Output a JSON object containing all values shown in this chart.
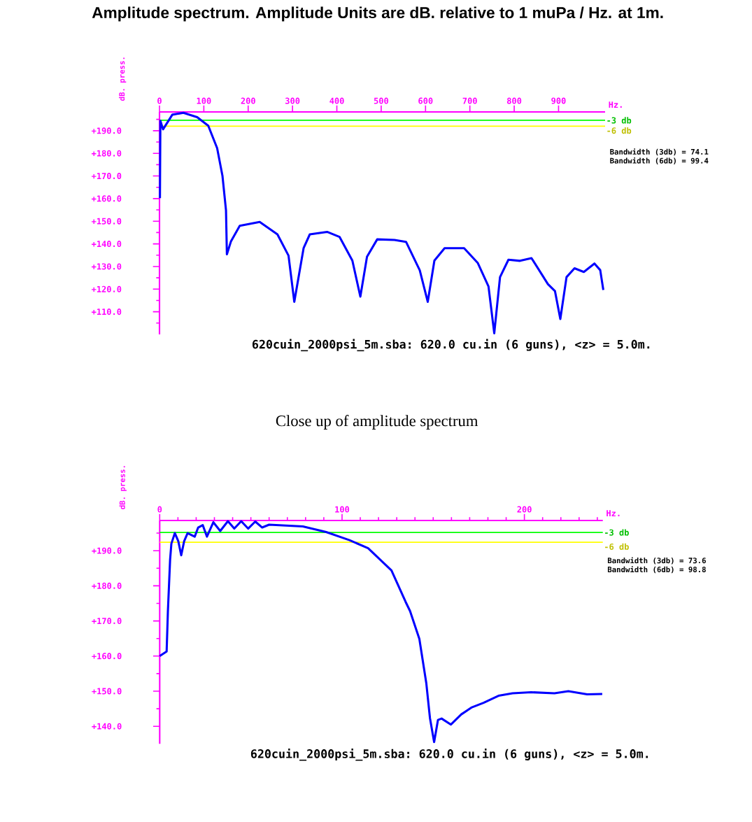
{
  "chart_data": [
    {
      "type": "line",
      "title": "Amplitude spectrum. Amplitude Units are dB. relative to 1 muPa / Hz. at 1m.",
      "xlabel": "Hz.",
      "ylabel": "dB. press.",
      "color": "#0000ff",
      "x": [
        1,
        2,
        8,
        29,
        54,
        85,
        110,
        130,
        142,
        150,
        152,
        161,
        181,
        226,
        266,
        291,
        304,
        325,
        339,
        378,
        406,
        435,
        453,
        468,
        491,
        530,
        556,
        587,
        605,
        620,
        643,
        687,
        718,
        742,
        755,
        768,
        787,
        813,
        839,
        876,
        892,
        904,
        918,
        936,
        957,
        981,
        994,
        1001
      ],
      "values": [
        160.2,
        194.4,
        190.6,
        197.1,
        197.9,
        196.0,
        192.2,
        182.3,
        170.1,
        154.8,
        135.4,
        141.0,
        148.0,
        149.7,
        144.2,
        134.8,
        114.4,
        138.1,
        144.2,
        145.3,
        143.1,
        132.6,
        116.7,
        134.3,
        142.0,
        141.7,
        140.9,
        128.3,
        114.4,
        132.6,
        138.1,
        138.1,
        131.5,
        121.2,
        100.5,
        125.3,
        133.0,
        132.5,
        133.7,
        122.2,
        119.1,
        106.8,
        125.3,
        129.2,
        127.6,
        131.3,
        128.4,
        119.6
      ],
      "xlim": [
        0,
        1005
      ],
      "ylim": [
        100,
        198.3
      ],
      "xticks": [
        0,
        100,
        200,
        300,
        400,
        500,
        600,
        700,
        800,
        900
      ],
      "yticks": [
        {
          "value": 105,
          "label": null
        },
        {
          "value": 110,
          "label": "+110.0"
        },
        {
          "value": 115,
          "label": null
        },
        {
          "value": 120,
          "label": "+120.0"
        },
        {
          "value": 125,
          "label": null
        },
        {
          "value": 130,
          "label": "+130.0"
        },
        {
          "value": 135,
          "label": null
        },
        {
          "value": 140,
          "label": "+140.0"
        },
        {
          "value": 145,
          "label": null
        },
        {
          "value": 150,
          "label": "+150.0"
        },
        {
          "value": 155,
          "label": null
        },
        {
          "value": 160,
          "label": "+160.0"
        },
        {
          "value": 165,
          "label": null
        },
        {
          "value": 170,
          "label": "+170.0"
        },
        {
          "value": 175,
          "label": null
        },
        {
          "value": 180,
          "label": "+180.0"
        },
        {
          "value": 185,
          "label": null
        },
        {
          "value": 190,
          "label": "+190.0"
        },
        {
          "value": 195,
          "label": null
        }
      ],
      "ref_lines": [
        {
          "axis": "y",
          "value": 194.6,
          "label": "-3 db",
          "color": "#00ff00"
        },
        {
          "axis": "y",
          "value": 192.0,
          "label": "-6 db",
          "color": "#ffff00"
        }
      ],
      "annotations": [
        "Bandwidth (3db) =  74.1",
        "Bandwidth (6db) =  99.4",
        "620cuin_2000psi_5m.sba: 620.0 cu.in (6 guns), <z> =  5.0m."
      ]
    },
    {
      "type": "line",
      "title": "Close up of amplitude spectrum",
      "xlabel": "Hz.",
      "ylabel": "dB. press.",
      "color": "#0000ff",
      "x": [
        0,
        3.8,
        4.5,
        5.7,
        6.4,
        8.3,
        10.2,
        11.8,
        13.4,
        15.3,
        19.2,
        21.1,
        23.6,
        25.9,
        29.4,
        33.2,
        37.4,
        40.9,
        44.7,
        48.5,
        52.4,
        56.2,
        60.0,
        78.5,
        91.3,
        104.1,
        114.3,
        127.1,
        134.8,
        137.3,
        142.4,
        146.2,
        148.2,
        150.5,
        152.6,
        154.6,
        159.7,
        165.4,
        171.2,
        177.6,
        185.8,
        193.5,
        203.7,
        216.5,
        224.1,
        234.4,
        242.7
      ],
      "values": [
        160.0,
        161.3,
        172.8,
        187.4,
        192.0,
        195.0,
        192.7,
        188.7,
        192.7,
        195.0,
        194.0,
        196.6,
        197.3,
        194.0,
        198.1,
        195.6,
        198.4,
        196.3,
        198.4,
        196.3,
        198.3,
        196.6,
        197.4,
        196.9,
        195.3,
        193.0,
        190.7,
        184.4,
        175.5,
        172.8,
        164.9,
        152.3,
        142.4,
        135.5,
        141.8,
        142.2,
        140.5,
        143.4,
        145.4,
        146.7,
        148.7,
        149.4,
        149.7,
        149.4,
        150.0,
        149.1,
        149.2
      ],
      "xlim": [
        0,
        243
      ],
      "ylim": [
        135,
        198.6
      ],
      "xticks": [
        0,
        {
          "value": 10,
          "label": null
        },
        {
          "value": 20,
          "label": null
        },
        {
          "value": 30,
          "label": null
        },
        {
          "value": 40,
          "label": null
        },
        {
          "value": 50,
          "label": null
        },
        {
          "value": 60,
          "label": null
        },
        {
          "value": 70,
          "label": null
        },
        {
          "value": 80,
          "label": null
        },
        {
          "value": 90,
          "label": null
        },
        100,
        {
          "value": 110,
          "label": null
        },
        {
          "value": 120,
          "label": null
        },
        {
          "value": 130,
          "label": null
        },
        {
          "value": 140,
          "label": null
        },
        {
          "value": 150,
          "label": null
        },
        {
          "value": 160,
          "label": null
        },
        {
          "value": 170,
          "label": null
        },
        {
          "value": 180,
          "label": null
        },
        {
          "value": 190,
          "label": null
        },
        200,
        {
          "value": 210,
          "label": null
        },
        {
          "value": 220,
          "label": null
        },
        {
          "value": 230,
          "label": null
        },
        {
          "value": 240,
          "label": null
        }
      ],
      "yticks": [
        {
          "value": 140,
          "label": "+140.0"
        },
        {
          "value": 145,
          "label": null
        },
        {
          "value": 150,
          "label": "+150.0"
        },
        {
          "value": 155,
          "label": null
        },
        {
          "value": 160,
          "label": "+160.0"
        },
        {
          "value": 165,
          "label": null
        },
        {
          "value": 170,
          "label": "+170.0"
        },
        {
          "value": 175,
          "label": null
        },
        {
          "value": 180,
          "label": "+180.0"
        },
        {
          "value": 185,
          "label": null
        },
        {
          "value": 190,
          "label": "+190.0"
        },
        {
          "value": 195,
          "label": null
        }
      ],
      "ref_lines": [
        {
          "axis": "y",
          "value": 195.2,
          "label": "-3 db",
          "color": "#00ff00"
        },
        {
          "axis": "y",
          "value": 192.4,
          "label": "-6 db",
          "color": "#ffff00"
        }
      ],
      "annotations": [
        "Bandwidth (3db) =  73.6",
        "Bandwidth (6db) =  98.8",
        "620cuin_2000psi_5m.sba: 620.0 cu.in (6 guns), <z> =  5.0m."
      ]
    }
  ]
}
